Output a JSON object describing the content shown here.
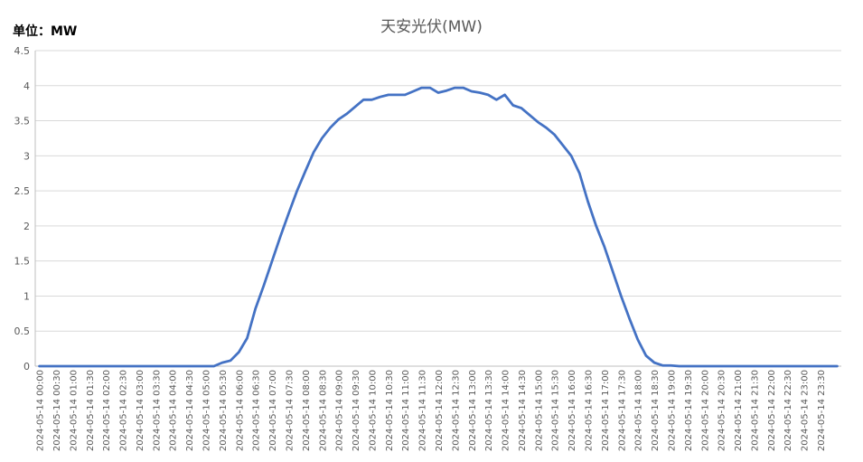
{
  "unit_label": "单位：MW",
  "chart_data": {
    "type": "line",
    "title": "天安光伏(MW)",
    "xlabel": "",
    "ylabel": "",
    "ylim": [
      0,
      4.5
    ],
    "y_ticks": [
      0,
      0.5,
      1,
      1.5,
      2,
      2.5,
      3,
      3.5,
      4,
      4.5
    ],
    "grid": true,
    "legend": "none",
    "line_color": "#4472c4",
    "x_labels": [
      "2024-05-14 00:00",
      "2024-05-14 00:30",
      "2024-05-14 01:00",
      "2024-05-14 01:30",
      "2024-05-14 02:00",
      "2024-05-14 02:30",
      "2024-05-14 03:00",
      "2024-05-14 03:30",
      "2024-05-14 04:00",
      "2024-05-14 04:30",
      "2024-05-14 05:00",
      "2024-05-14 05:30",
      "2024-05-14 06:00",
      "2024-05-14 06:30",
      "2024-05-14 07:00",
      "2024-05-14 07:30",
      "2024-05-14 08:00",
      "2024-05-14 08:30",
      "2024-05-14 09:00",
      "2024-05-14 09:30",
      "2024-05-14 10:00",
      "2024-05-14 10:30",
      "2024-05-14 11:00",
      "2024-05-14 11:30",
      "2024-05-14 12:00",
      "2024-05-14 12:30",
      "2024-05-14 13:00",
      "2024-05-14 13:30",
      "2024-05-14 14:00",
      "2024-05-14 14:30",
      "2024-05-14 15:00",
      "2024-05-14 15:30",
      "2024-05-14 16:00",
      "2024-05-14 16:30",
      "2024-05-14 17:00",
      "2024-05-14 17:30",
      "2024-05-14 18:00",
      "2024-05-14 18:30",
      "2024-05-14 19:00",
      "2024-05-14 19:30",
      "2024-05-14 20:00",
      "2024-05-14 20:30",
      "2024-05-14 21:00",
      "2024-05-14 21:30",
      "2024-05-14 22:00",
      "2024-05-14 22:30",
      "2024-05-14 23:00",
      "2024-05-14 23:30"
    ],
    "series": [
      {
        "values": [
          0,
          0,
          0,
          0,
          0,
          0,
          0,
          0,
          0,
          0,
          0,
          0,
          0,
          0,
          0,
          0,
          0,
          0,
          0,
          0,
          0,
          0,
          0.05,
          0.08,
          0.2,
          0.4,
          0.82,
          1.15,
          1.5,
          1.85,
          2.18,
          2.5,
          2.78,
          3.05,
          3.25,
          3.4,
          3.52,
          3.6,
          3.7,
          3.8,
          3.8,
          3.84,
          3.87,
          3.87,
          3.87,
          3.92,
          3.97,
          3.97,
          3.9,
          3.93,
          3.97,
          3.97,
          3.92,
          3.9,
          3.87,
          3.8,
          3.87,
          3.72,
          3.68,
          3.58,
          3.48,
          3.4,
          3.3,
          3.15,
          3,
          2.75,
          2.35,
          2.0,
          1.7,
          1.35,
          1.0,
          0.68,
          0.38,
          0.15,
          0.05,
          0.01,
          0.01,
          0,
          0,
          0,
          0,
          0,
          0,
          0,
          0,
          0,
          0,
          0,
          0,
          0,
          0,
          0,
          0,
          0,
          0,
          0,
          0
        ]
      }
    ]
  }
}
